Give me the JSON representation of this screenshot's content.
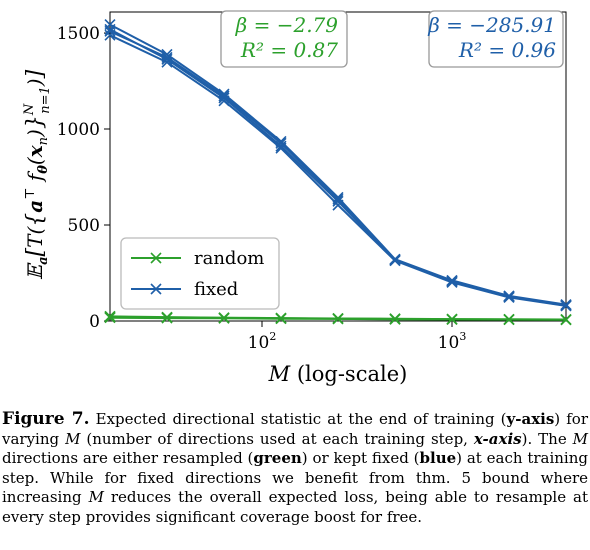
{
  "chart_data": {
    "type": "line",
    "xscale": "log",
    "xlim": [
      16,
      4096
    ],
    "ylim": [
      0,
      1600
    ],
    "xlabel_var": "M",
    "xlabel_suffix": "(log-scale)",
    "ylabel": "E_a [ T({aᵀ f_θ(x_n)}_{n=1}^N) ]",
    "x_ticks": [
      {
        "value": 100,
        "base": "10",
        "exp": "2"
      },
      {
        "value": 1000,
        "base": "10",
        "exp": "3"
      }
    ],
    "y_ticks": [
      {
        "value": 0,
        "label": "0"
      },
      {
        "value": 500,
        "label": "500"
      },
      {
        "value": 1000,
        "label": "1000"
      },
      {
        "value": 1500,
        "label": "1500"
      }
    ],
    "legend_position": "lower-left",
    "series": [
      {
        "name": "random",
        "color": "#2ca02c",
        "runs": [
          {
            "x": [
              16,
              32,
              64,
              128,
              256,
              512,
              1024,
              2048,
              4096
            ],
            "y": [
              20,
              18,
              16,
              14,
              12,
              10,
              9,
              8,
              7
            ]
          },
          {
            "x": [
              16,
              32,
              64,
              128,
              256,
              512,
              1024,
              2048,
              4096
            ],
            "y": [
              24,
              20,
              17,
              15,
              13,
              12,
              10,
              9,
              8
            ]
          },
          {
            "x": [
              16,
              32,
              64,
              128,
              256,
              512,
              1024,
              2048,
              4096
            ],
            "y": [
              17,
              15,
              14,
              12,
              11,
              9,
              8,
              7,
              6
            ]
          }
        ]
      },
      {
        "name": "fixed",
        "color": "#1f5fa8",
        "runs": [
          {
            "x": [
              16,
              32,
              64,
              128,
              256,
              512,
              1024,
              2048,
              4096
            ],
            "y": [
              1535,
              1380,
              1175,
              930,
              640,
              320,
              210,
              130,
              85
            ]
          },
          {
            "x": [
              16,
              32,
              64,
              128,
              256,
              512,
              1024,
              2048,
              4096
            ],
            "y": [
              1510,
              1355,
              1155,
              905,
              620,
              315,
              205,
              125,
              80
            ]
          },
          {
            "x": [
              16,
              32,
              64,
              128,
              256,
              512,
              1024,
              2048,
              4096
            ],
            "y": [
              1480,
              1340,
              1140,
              895,
              600,
              312,
              200,
              122,
              78
            ]
          },
          {
            "x": [
              16,
              32,
              64,
              128,
              256,
              512,
              1024,
              2048,
              4096
            ],
            "y": [
              1500,
              1365,
              1165,
              920,
              630,
              318,
              208,
              128,
              82
            ]
          }
        ]
      }
    ],
    "annotations": [
      {
        "series": "random",
        "beta": "β = −2.79",
        "r2": "R² = 0.87",
        "position": "top-center"
      },
      {
        "series": "fixed",
        "beta": "β = −285.91",
        "r2": "R² = 0.96",
        "position": "top-right"
      }
    ]
  },
  "caption": {
    "label": "Figure 7.",
    "t1": " Expected directional statistic at the end of training (",
    "b1": "y-axis",
    "t2": ") for varying ",
    "m1": "M",
    "t3": " (number of directions used at each training step, ",
    "b2": "x-axis",
    "t4": "). The ",
    "m2": "M",
    "t5": " directions are either resampled (",
    "b3": "green",
    "t6": ") or kept fixed (",
    "b4": "blue",
    "t7": ") at each training step. While for fixed directions we benefit from thm. 5 bound where increasing ",
    "m3": "M",
    "t8": " reduces the overall expected loss, being able to resample at every step provides significant coverage boost for free."
  }
}
